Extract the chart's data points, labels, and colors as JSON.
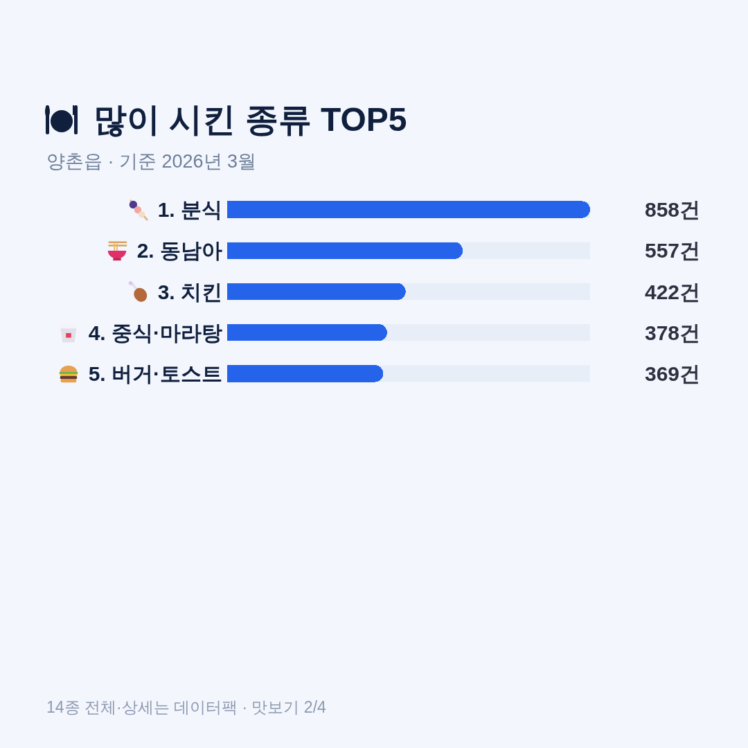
{
  "chart_data": {
    "type": "bar",
    "orientation": "horizontal",
    "title": "많이 시킨 종류 TOP5",
    "subtitle": "양촌읍 · 기준 2026년 3월",
    "categories": [
      "1. 분식",
      "2. 동남아",
      "3. 치킨",
      "4. 중식·마라탕",
      "5. 버거·토스트"
    ],
    "values": [
      858,
      557,
      422,
      378,
      369
    ],
    "color": "#2563eb",
    "value_labels": [
      "858건",
      "557건",
      "422건",
      "378건",
      "369건"
    ],
    "xlim": [
      0,
      858
    ],
    "tick_labels": "y",
    "annotations": [
      "14종 전체·상세는 데이터팩 · 맛보기 2/4"
    ]
  }
}
